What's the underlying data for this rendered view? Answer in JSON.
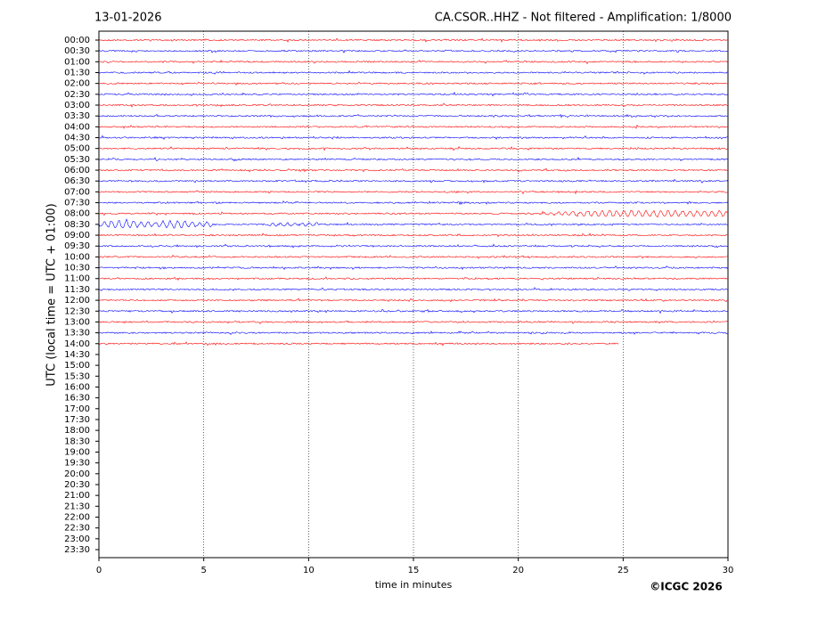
{
  "chart_data": {
    "type": "helicorder",
    "date": "13-01-2026",
    "title": "CA.CSOR..HHZ - Not filtered - Amplification: 1/8000",
    "y_label": "UTC (local time = UTC + 01:00)",
    "x_label": "time in minutes",
    "credit": "©ICGC 2026",
    "categories": [
      "00:00",
      "00:30",
      "01:00",
      "01:30",
      "02:00",
      "02:30",
      "03:00",
      "03:30",
      "04:00",
      "04:30",
      "05:00",
      "05:30",
      "06:00",
      "06:30",
      "07:00",
      "07:30",
      "08:00",
      "08:30",
      "09:00",
      "09:30",
      "10:00",
      "10:30",
      "11:00",
      "11:30",
      "12:00",
      "12:30",
      "13:00",
      "13:30",
      "14:00",
      "14:30",
      "15:00",
      "15:30",
      "16:00",
      "16:30",
      "17:00",
      "17:30",
      "18:00",
      "18:30",
      "19:00",
      "19:30",
      "20:00",
      "20:30",
      "21:00",
      "21:30",
      "22:00",
      "22:30",
      "23:00",
      "23:30"
    ],
    "values": [
      30,
      30,
      30,
      30,
      30,
      30,
      30,
      30,
      30,
      30,
      30,
      30,
      30,
      30,
      30,
      30,
      30,
      30,
      30,
      30,
      30,
      30,
      30,
      30,
      30,
      30,
      30,
      30,
      24.8,
      null,
      null,
      null,
      null,
      null,
      null,
      null,
      null,
      null,
      null,
      null,
      null,
      null,
      null,
      null,
      null,
      null,
      null,
      null
    ],
    "colors": [
      "#ff0000",
      "#0000ff"
    ],
    "xlim": [
      0,
      30
    ],
    "xticks": [
      0,
      5,
      10,
      15,
      20,
      25,
      30
    ],
    "grid": true
  }
}
